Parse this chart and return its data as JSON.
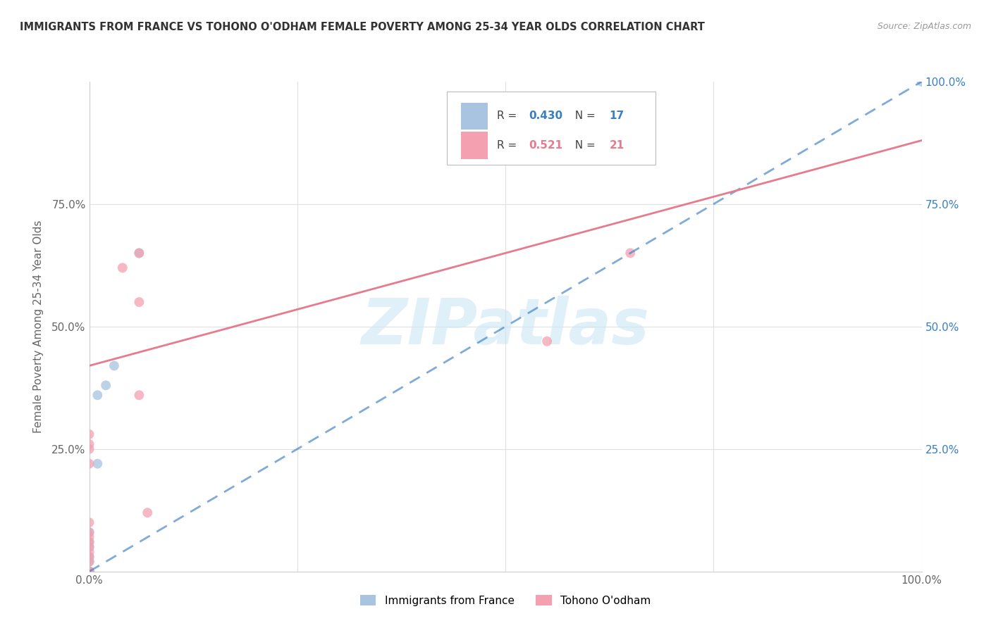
{
  "title": "IMMIGRANTS FROM FRANCE VS TOHONO O'ODHAM FEMALE POVERTY AMONG 25-34 YEAR OLDS CORRELATION CHART",
  "source": "Source: ZipAtlas.com",
  "ylabel": "Female Poverty Among 25-34 Year Olds",
  "watermark": "ZIPatlas",
  "legend_entries": [
    {
      "label": "Immigrants from France",
      "color": "#a8c4e0",
      "R": "0.430",
      "N": "17"
    },
    {
      "label": "Tohono O'odham",
      "color": "#f4a0b0",
      "R": "0.521",
      "N": "21"
    }
  ],
  "blue_scatter_x": [
    0.0,
    0.0,
    0.0,
    0.0,
    0.0,
    0.0,
    0.0,
    0.0,
    0.0,
    0.0,
    0.0,
    0.01,
    0.01,
    0.02,
    0.03,
    0.06,
    1.0
  ],
  "blue_scatter_y": [
    0.0,
    0.0,
    0.0,
    0.0,
    0.0,
    0.0,
    0.02,
    0.03,
    0.05,
    0.06,
    0.08,
    0.22,
    0.36,
    0.38,
    0.42,
    0.65,
    1.0
  ],
  "pink_scatter_x": [
    0.0,
    0.0,
    0.0,
    0.0,
    0.0,
    0.0,
    0.0,
    0.0,
    0.0,
    0.0,
    0.0,
    0.0,
    0.0,
    0.0,
    0.04,
    0.06,
    0.06,
    0.06,
    0.07,
    0.55,
    0.65
  ],
  "pink_scatter_y": [
    0.0,
    0.0,
    0.02,
    0.03,
    0.04,
    0.05,
    0.06,
    0.07,
    0.08,
    0.1,
    0.22,
    0.25,
    0.26,
    0.28,
    0.62,
    0.36,
    0.55,
    0.65,
    0.12,
    0.47,
    0.65
  ],
  "blue_line_x": [
    0.0,
    1.0
  ],
  "blue_line_y": [
    0.0,
    1.0
  ],
  "pink_line_x": [
    0.0,
    1.0
  ],
  "pink_line_y": [
    0.42,
    0.88
  ],
  "xlim": [
    0.0,
    1.0
  ],
  "ylim": [
    0.0,
    1.0
  ],
  "xtick_labels": [
    "0.0%",
    "",
    "",
    "",
    "100.0%"
  ],
  "xtick_vals": [
    0.0,
    0.25,
    0.5,
    0.75,
    1.0
  ],
  "ytick_labels": [
    "25.0%",
    "50.0%",
    "75.0%"
  ],
  "ytick_vals": [
    0.25,
    0.5,
    0.75
  ],
  "right_ytick_labels": [
    "25.0%",
    "50.0%",
    "75.0%",
    "100.0%"
  ],
  "right_ytick_vals": [
    0.25,
    0.5,
    0.75,
    1.0
  ],
  "scatter_size": 100,
  "scatter_alpha": 0.75,
  "line_blue_color": "#3a7fc1",
  "line_pink_color": "#e87a8e",
  "scatter_blue_color": "#a8c4e0",
  "scatter_pink_color": "#f4a0b0",
  "background_color": "#ffffff",
  "grid_color": "#e0e0e0",
  "title_color": "#333333"
}
